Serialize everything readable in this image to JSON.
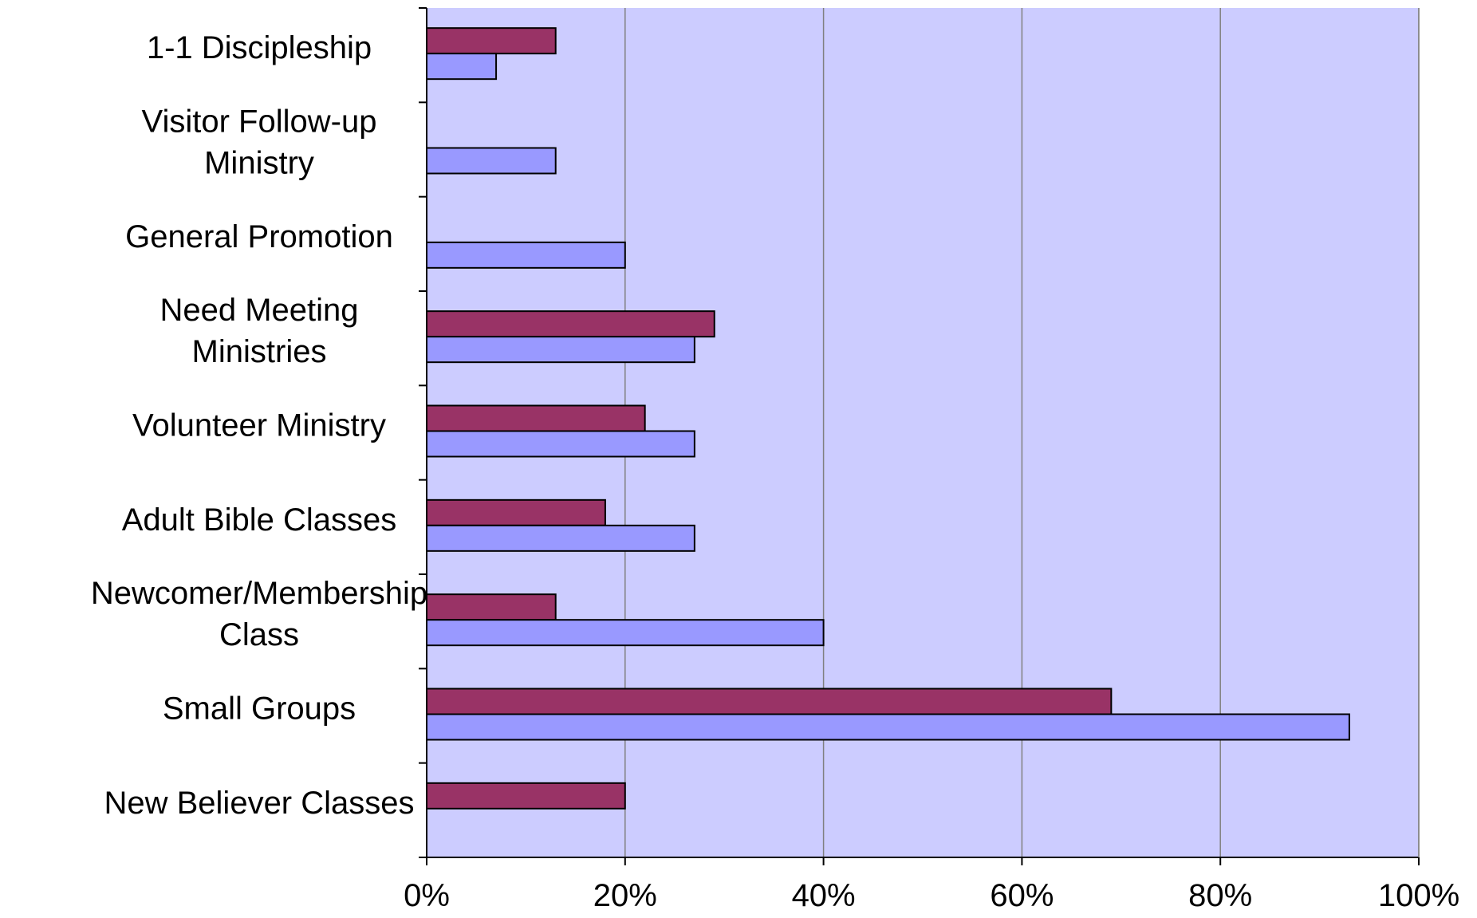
{
  "chart_data": {
    "type": "bar",
    "orientation": "horizontal",
    "categories": [
      [
        "1-1 Discipleship"
      ],
      [
        "Visitor Follow-up",
        "Ministry"
      ],
      [
        "General Promotion"
      ],
      [
        "Need Meeting",
        "Ministries"
      ],
      [
        "Volunteer Ministry"
      ],
      [
        "Adult Bible Classes"
      ],
      [
        "Newcomer/Membership",
        "Class"
      ],
      [
        "Small Groups"
      ],
      [
        "New Believer Classes"
      ]
    ],
    "series": [
      {
        "color": "#993366",
        "values": [
          13,
          null,
          null,
          29,
          22,
          18,
          13,
          69,
          20
        ]
      },
      {
        "color": "#9999ff",
        "values": [
          7,
          13,
          20,
          27,
          27,
          27,
          40,
          93,
          null
        ]
      }
    ],
    "xlim": [
      0,
      100
    ],
    "xticks": [
      "0%",
      "20%",
      "40%",
      "60%",
      "80%",
      "100%"
    ],
    "plot_background": "#ccccff",
    "grid": true,
    "legend": "none"
  }
}
